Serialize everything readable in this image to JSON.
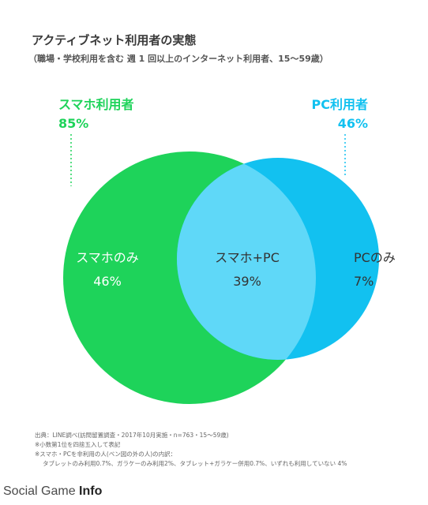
{
  "title": "アクティブネット利用者の実態",
  "subtitle": "（職場・学校利用を含む 週 1 回以上のインターネット利用者、15〜59歳）",
  "chart_data": {
    "type": "venn",
    "sets": [
      {
        "name": "スマホ利用者",
        "value": "85%",
        "color": "#1ed35a"
      },
      {
        "name": "PC利用者",
        "value": "46%",
        "color": "#12c1f0"
      }
    ],
    "regions": [
      {
        "name": "スマホのみ",
        "value": "46%"
      },
      {
        "name": "スマホ+PC",
        "value": "39%"
      },
      {
        "name": "PCのみ",
        "value": "7%"
      }
    ],
    "overlap_color": "#5fd8f8"
  },
  "notes": [
    "出典：LINE調べ(訪問留置調査・2017年10月実施・n=763・15〜59歳)",
    "※小数第1位を四捨五入して表記",
    "※スマホ・PCを非利用の人(ベン図の外の人)の内訳：",
    "タブレットのみ利用0.7%、ガラケーのみ利用2%、タブレット+ガラケー併用0.7%、いずれも利用していない 4%"
  ],
  "brand": {
    "prefix": "Social Game ",
    "suffix": "Info"
  }
}
